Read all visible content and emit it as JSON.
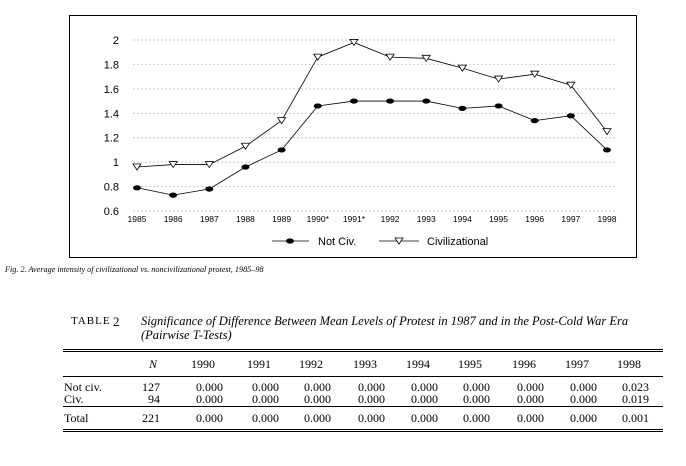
{
  "chart_data": {
    "type": "line",
    "categories": [
      "1985",
      "1986",
      "1987",
      "1988",
      "1989",
      "1990*",
      "1991*",
      "1992",
      "1993",
      "1994",
      "1995",
      "1996",
      "1997",
      "1998"
    ],
    "series": [
      {
        "name": "Not Civ.",
        "marker": "filled-circle",
        "values": [
          0.79,
          0.73,
          0.78,
          0.96,
          1.1,
          1.46,
          1.5,
          1.5,
          1.5,
          1.44,
          1.46,
          1.34,
          1.38,
          1.1
        ]
      },
      {
        "name": "Civilizational",
        "marker": "open-triangle-down",
        "values": [
          0.96,
          0.98,
          0.98,
          1.13,
          1.34,
          1.86,
          1.98,
          1.86,
          1.85,
          1.77,
          1.68,
          1.72,
          1.63,
          1.25
        ]
      }
    ],
    "yticks": [
      "0.6",
      "0.8",
      "1",
      "1.2",
      "1.4",
      "1.6",
      "1.8",
      "2"
    ],
    "ylim": [
      0.6,
      2.0
    ],
    "grid": true,
    "legend_position": "bottom"
  },
  "figure": {
    "caption": "Fig. 2. Average intensity of civilizational vs. noncivilizational protest, 1985–98"
  },
  "table": {
    "label": "TABLE",
    "number": "2",
    "title": "Significance of Difference Between Mean Levels of Protest in 1987 and in the Post-Cold War Era (Pairwise T-Tests)",
    "columns": [
      "N",
      "1990",
      "1991",
      "1992",
      "1993",
      "1994",
      "1995",
      "1996",
      "1997",
      "1998"
    ],
    "rows": [
      {
        "label": "Not civ.",
        "n": "127",
        "values": [
          "0.000",
          "0.000",
          "0.000",
          "0.000",
          "0.000",
          "0.000",
          "0.000",
          "0.000",
          "0.023"
        ]
      },
      {
        "label": "Civ.",
        "n": "94",
        "values": [
          "0.000",
          "0.000",
          "0.000",
          "0.000",
          "0.000",
          "0.000",
          "0.000",
          "0.000",
          "0.019"
        ]
      },
      {
        "label": "Total",
        "n": "221",
        "values": [
          "0.000",
          "0.000",
          "0.000",
          "0.000",
          "0.000",
          "0.000",
          "0.000",
          "0.000",
          "0.001"
        ]
      }
    ]
  }
}
